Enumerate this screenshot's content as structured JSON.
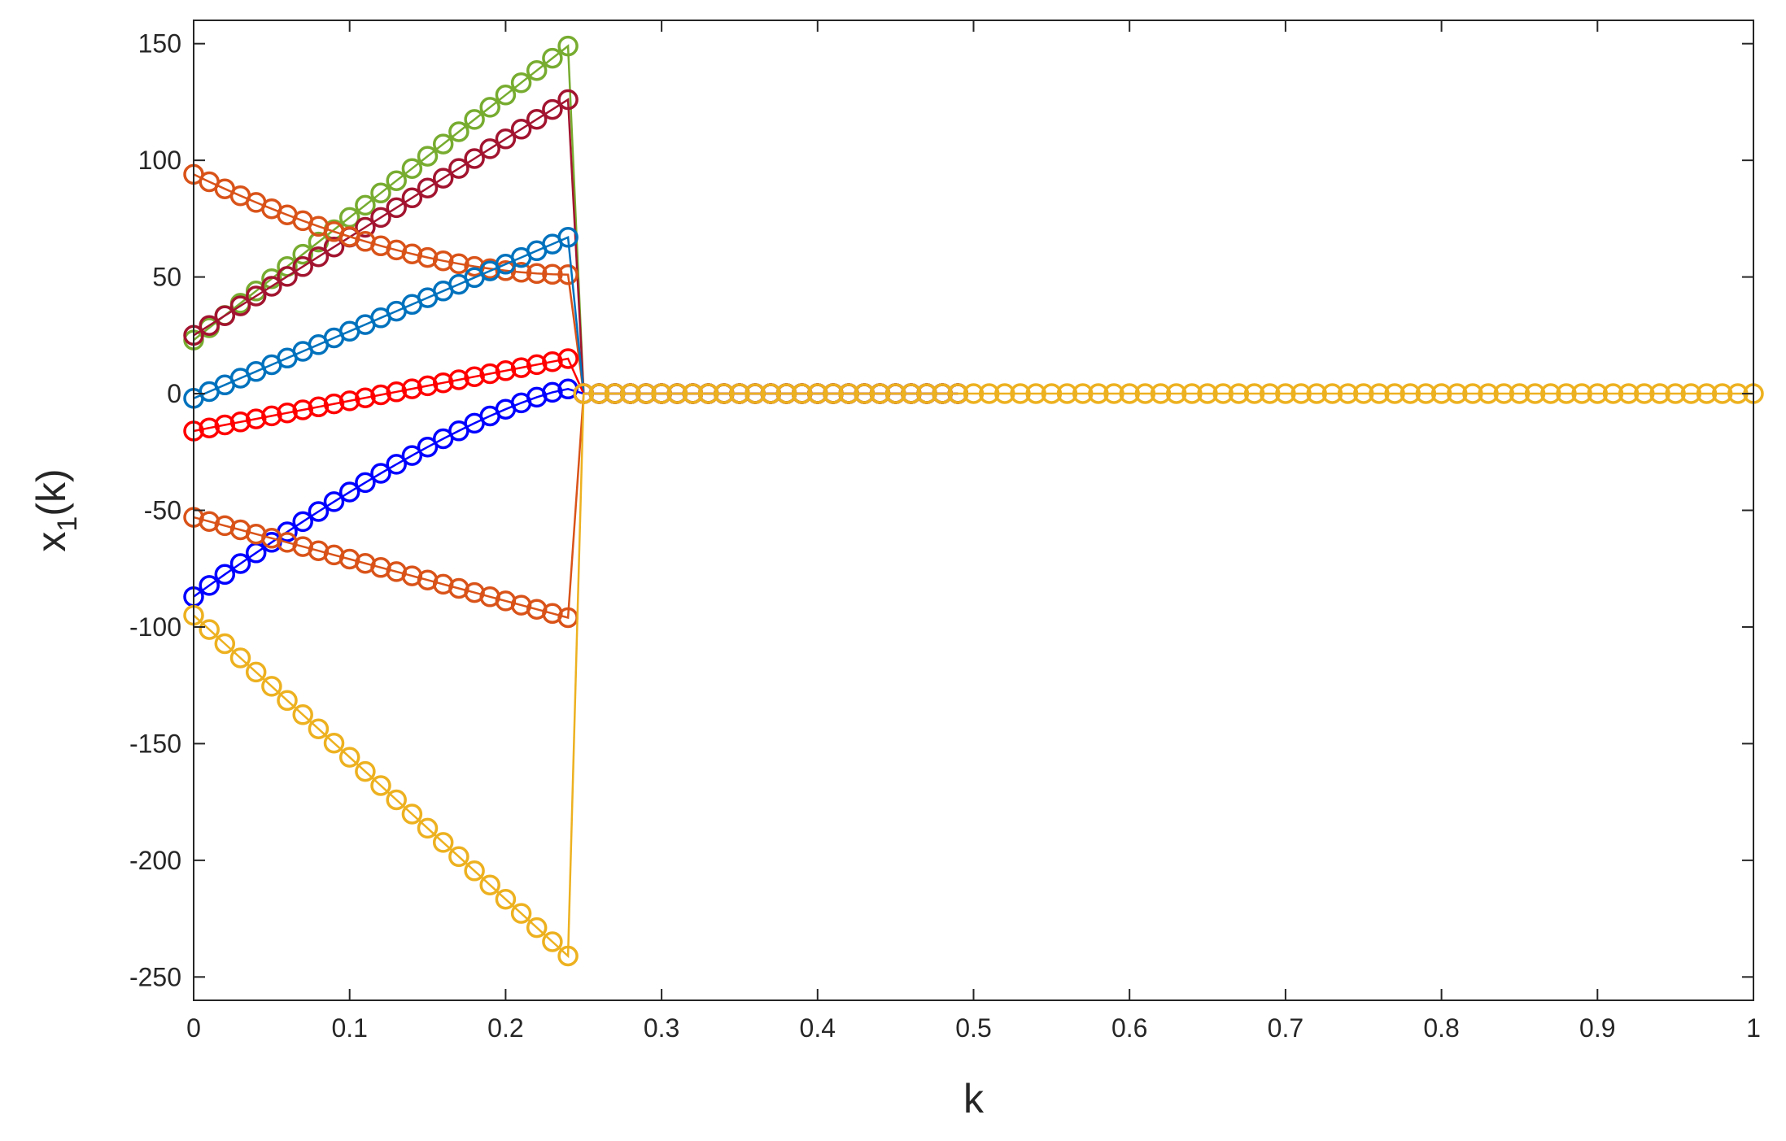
{
  "chart_data": {
    "type": "line",
    "title": "",
    "xlabel": "k",
    "ylabel_main": "x",
    "ylabel_sub": "1",
    "ylabel_tail": "(k)",
    "xlim": [
      0,
      1
    ],
    "ylim": [
      -260,
      160
    ],
    "xticks": [
      0,
      0.1,
      0.2,
      0.3,
      0.4,
      0.5,
      0.6,
      0.7,
      0.8,
      0.9,
      1
    ],
    "xtick_labels": [
      "0",
      "0.1",
      "0.2",
      "0.3",
      "0.4",
      "0.5",
      "0.6",
      "0.7",
      "0.8",
      "0.9",
      "1"
    ],
    "yticks": [
      150,
      100,
      50,
      0,
      -50,
      -100,
      -150,
      -200,
      -250
    ],
    "ytick_labels": [
      "150",
      "100",
      "50",
      "0",
      "-50",
      "-100",
      "-150",
      "-200",
      "-250"
    ],
    "grid": false,
    "marker": "circle-open",
    "series": [
      {
        "color": "#77AC30",
        "start": 23,
        "pre_end": 149,
        "shape": "linear",
        "end_k": 0.49
      },
      {
        "color": "#A2142F",
        "start": 25,
        "pre_end": 126,
        "shape": "linear",
        "end_k": 0.49
      },
      {
        "color": "#D95319",
        "start": 94,
        "pre_end": 51,
        "shape": "convex",
        "end_k": 0.49
      },
      {
        "color": "#0072BD",
        "start": -2,
        "pre_end": 67,
        "shape": "linear",
        "end_k": 0.49
      },
      {
        "color": "#FF0000",
        "start": -16,
        "pre_end": 15,
        "shape": "linear",
        "end_k": 0.49
      },
      {
        "color": "#0000FF",
        "start": -87,
        "pre_end": 2,
        "shape": "concave",
        "end_k": 0.49
      },
      {
        "color": "#D95319",
        "start": -53,
        "pre_end": -96,
        "shape": "linear",
        "end_k": 0.49
      },
      {
        "color": "#EDB120",
        "start": -95,
        "pre_end": -241,
        "shape": "linear",
        "end_k": 1.0
      }
    ],
    "converge_k": 0.25,
    "converge_value": 0,
    "pre_step": 0.01,
    "pre_end_k": 0.24
  }
}
